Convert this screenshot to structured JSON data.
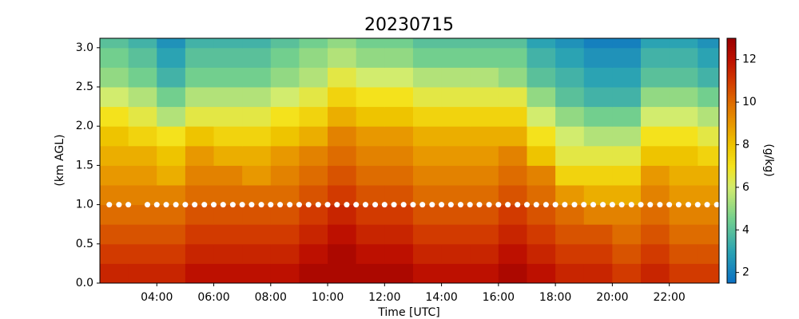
{
  "chart_data": {
    "type": "heatmap",
    "title": "20230715",
    "x_label": "Time [UTC]",
    "y_label": "(km AGL)",
    "colorbar_label": "(g/kg)",
    "xlim": [
      2.0,
      23.75
    ],
    "ylim": [
      0,
      3.12
    ],
    "zlim": [
      1.5,
      13
    ],
    "xticks": [
      {
        "value": 4,
        "label": "04:00"
      },
      {
        "value": 6,
        "label": "06:00"
      },
      {
        "value": 8,
        "label": "08:00"
      },
      {
        "value": 10,
        "label": "10:00"
      },
      {
        "value": 12,
        "label": "12:00"
      },
      {
        "value": 14,
        "label": "14:00"
      },
      {
        "value": 16,
        "label": "16:00"
      },
      {
        "value": 18,
        "label": "18:00"
      },
      {
        "value": 20,
        "label": "20:00"
      },
      {
        "value": 22,
        "label": "22:00"
      }
    ],
    "yticks": [
      {
        "value": 0,
        "label": "0.0"
      },
      {
        "value": 0.5,
        "label": "0.5"
      },
      {
        "value": 1,
        "label": "1.0"
      },
      {
        "value": 1.5,
        "label": "1.5"
      },
      {
        "value": 2,
        "label": "2.0"
      },
      {
        "value": 2.5,
        "label": "2.5"
      },
      {
        "value": 3,
        "label": "3.0"
      }
    ],
    "colorbar_ticks": [
      2,
      4,
      6,
      8,
      10,
      12
    ],
    "colorscale": [
      [
        1.5,
        "#0a6fc4"
      ],
      [
        3,
        "#2ba3b3"
      ],
      [
        4.5,
        "#72cf8e"
      ],
      [
        6,
        "#d2ec6e"
      ],
      [
        7,
        "#f4e21c"
      ],
      [
        8,
        "#eec400"
      ],
      [
        9,
        "#e89800"
      ],
      [
        10,
        "#de6c00"
      ],
      [
        11,
        "#d23a00"
      ],
      [
        12,
        "#bd1000"
      ],
      [
        13,
        "#9a0000"
      ]
    ],
    "x_edges": [
      2,
      3,
      4,
      5,
      6,
      7,
      8,
      9,
      10,
      11,
      12,
      13,
      14,
      15,
      16,
      17,
      18,
      19,
      20,
      21,
      22,
      23,
      24
    ],
    "y_edges": [
      0,
      0.25,
      0.5,
      0.75,
      1,
      1.25,
      1.5,
      1.75,
      2,
      2.25,
      2.5,
      2.75,
      3,
      3.25
    ],
    "z": [
      [
        11.5,
        11.5,
        11.5,
        12,
        12,
        12,
        12,
        12.5,
        12.5,
        12.5,
        12.5,
        12,
        12,
        12,
        12.5,
        12,
        11.5,
        11.5,
        11,
        11.5,
        11,
        11
      ],
      [
        11,
        11,
        11,
        11.5,
        11.5,
        11.5,
        11.5,
        12,
        12.5,
        12,
        12,
        11.5,
        11.5,
        11.5,
        12,
        11.5,
        11,
        11,
        10.5,
        11,
        10.5,
        10.5
      ],
      [
        10.5,
        10.5,
        10.5,
        11,
        11,
        11,
        11,
        11.5,
        12,
        11.5,
        11.5,
        11,
        11,
        11,
        11.5,
        11,
        10.5,
        10.5,
        10,
        10.5,
        10,
        10
      ],
      [
        10,
        10,
        10,
        10.5,
        10.5,
        10.5,
        10.5,
        11,
        11.5,
        11,
        11,
        10.5,
        10.5,
        10.5,
        11,
        10.5,
        10,
        9.5,
        9.5,
        10,
        9.5,
        9.5
      ],
      [
        9.5,
        9.5,
        9.5,
        10,
        10,
        10,
        10,
        10.5,
        11,
        10.5,
        10.5,
        10,
        10,
        10,
        10.5,
        10,
        9,
        8.5,
        8.5,
        9.5,
        9,
        9
      ],
      [
        9,
        9,
        8.5,
        9.5,
        9.5,
        9,
        9.5,
        10,
        10.5,
        10,
        10,
        9.5,
        9.5,
        9.5,
        10,
        9.5,
        7.5,
        7.5,
        7.5,
        9,
        8.5,
        8.5
      ],
      [
        8.5,
        8.5,
        8,
        9,
        8.5,
        8.5,
        9,
        9.5,
        10,
        9.5,
        9.5,
        9,
        9,
        9,
        9.5,
        8,
        6.5,
        6.5,
        6.5,
        8,
        8,
        7.5
      ],
      [
        8,
        7.5,
        7,
        8,
        7.5,
        7.5,
        8,
        8.5,
        9.5,
        9,
        9,
        8.5,
        8.5,
        8.5,
        8.5,
        7,
        6,
        5.5,
        5.5,
        7,
        7,
        6.5
      ],
      [
        7,
        6.5,
        5.5,
        6.5,
        6.5,
        6.5,
        7,
        7.5,
        8.5,
        8,
        8,
        7.5,
        7.5,
        7.5,
        7.5,
        6,
        5,
        4.5,
        4.5,
        6,
        6,
        5.5
      ],
      [
        6,
        5.5,
        4.5,
        5.5,
        5.5,
        5.5,
        6,
        6.5,
        7.5,
        7,
        7,
        6.5,
        6.5,
        6.5,
        6.5,
        5,
        4,
        3.5,
        3.5,
        5,
        5,
        4.5
      ],
      [
        5,
        4.5,
        3.5,
        4.5,
        4.5,
        4.5,
        5,
        5.5,
        6.5,
        6,
        6,
        5.5,
        5.5,
        5.5,
        5,
        4,
        3.5,
        3,
        3,
        4,
        4,
        3.5
      ],
      [
        4.5,
        4,
        3,
        4,
        4,
        4,
        4.5,
        5,
        5.5,
        5,
        5,
        4.5,
        4.5,
        4.5,
        4.5,
        3.5,
        3,
        2.5,
        2.5,
        3.5,
        3.5,
        3
      ],
      [
        4,
        3.5,
        2.5,
        3.5,
        3.5,
        3.5,
        4,
        4.5,
        5,
        4.5,
        4.5,
        4,
        4,
        4,
        4,
        3,
        2.5,
        2,
        2,
        3,
        3,
        2.5
      ]
    ],
    "markers": {
      "color": "#ffffff",
      "y": 1.0,
      "x": [
        2.33,
        2.67,
        3.0,
        3.67,
        4.0,
        4.33,
        4.67,
        5.0,
        5.33,
        5.67,
        6.0,
        6.33,
        6.67,
        7.0,
        7.33,
        7.67,
        8.0,
        8.33,
        8.67,
        9.0,
        9.33,
        9.67,
        10.0,
        10.33,
        10.67,
        11.0,
        11.33,
        11.67,
        12.0,
        12.33,
        12.67,
        13.0,
        13.33,
        13.67,
        14.0,
        14.33,
        14.67,
        15.0,
        15.33,
        15.67,
        16.0,
        16.33,
        16.67,
        17.0,
        17.33,
        17.67,
        18.0,
        18.33,
        18.67,
        19.0,
        19.33,
        19.67,
        20.0,
        20.33,
        20.67,
        21.0,
        21.33,
        21.67,
        22.0,
        22.33,
        22.67,
        23.0,
        23.33,
        23.67
      ]
    }
  }
}
